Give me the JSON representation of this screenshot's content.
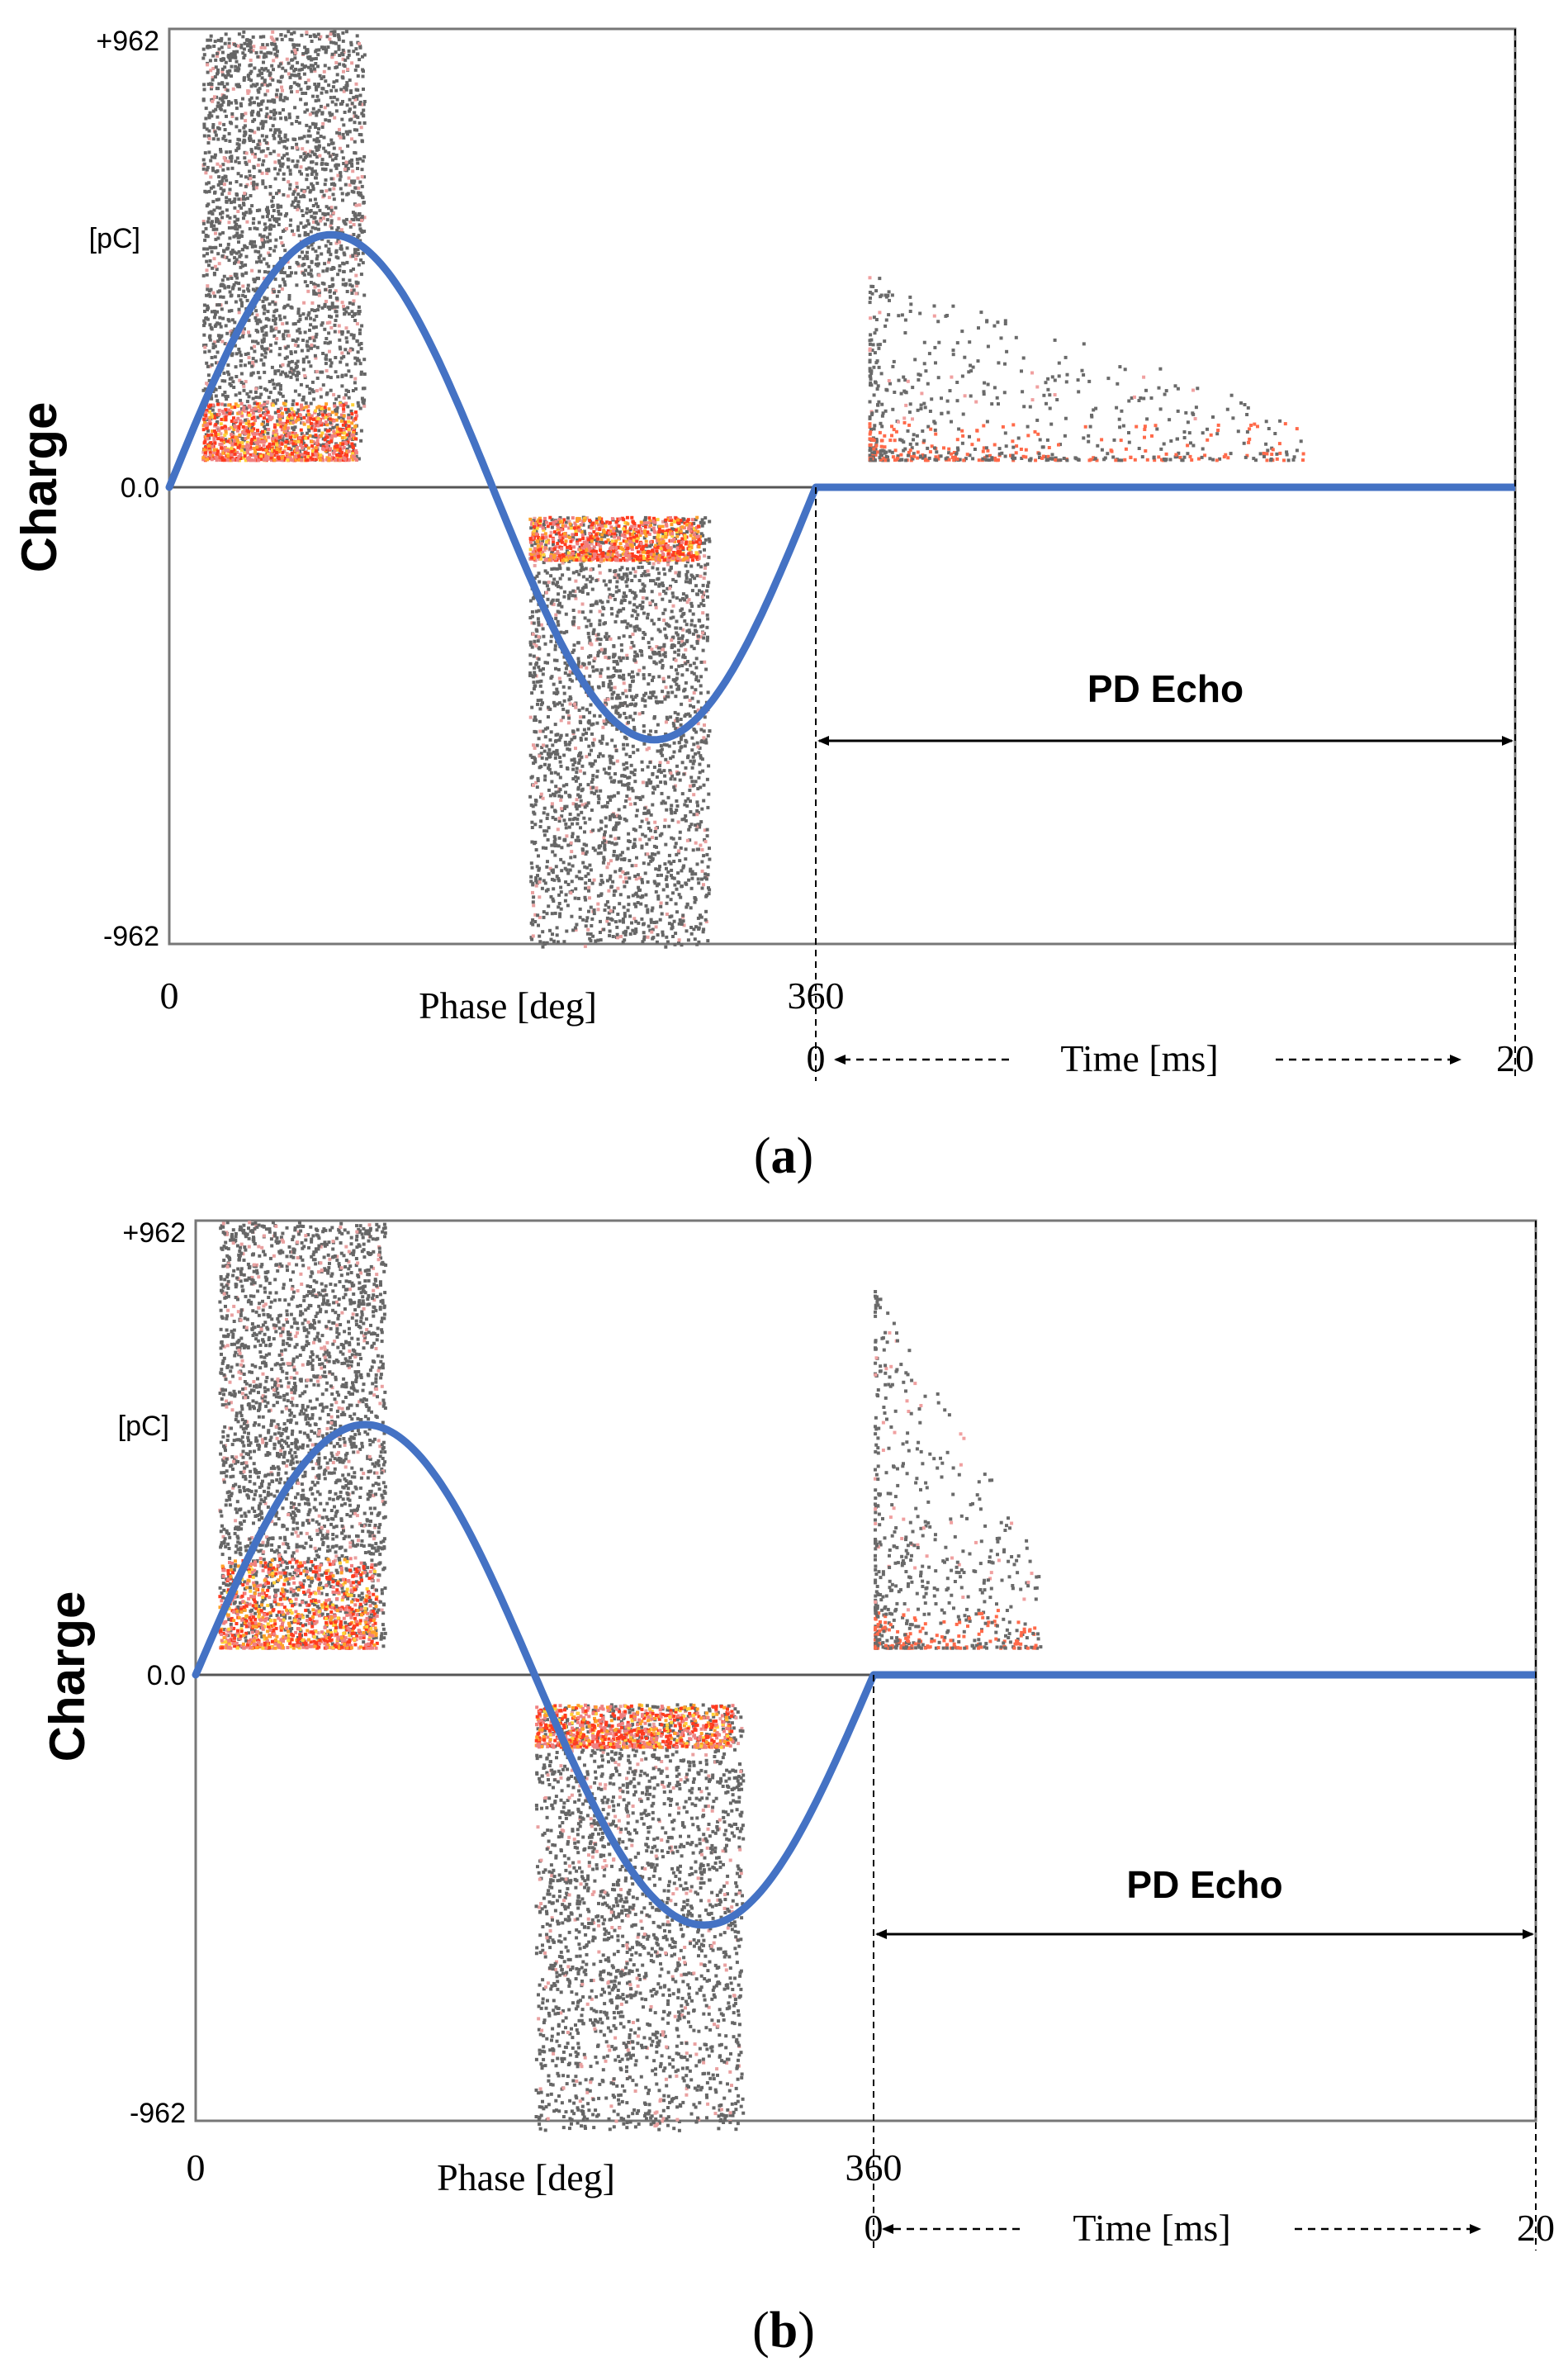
{
  "figure": {
    "panels": [
      {
        "caption_label": "a"
      },
      {
        "caption_label": "b"
      }
    ]
  },
  "chart_data": [
    {
      "type": "scatter",
      "panel": "a",
      "title": "",
      "ylabel": "Charge",
      "yunit": "[pC]",
      "ylim": [
        -962,
        962
      ],
      "yticks": [
        "+962",
        "0.0",
        "-962"
      ],
      "x_phase": {
        "label": "Phase [deg]",
        "range": [
          0,
          360
        ],
        "ticks": [
          "0",
          "360"
        ]
      },
      "x_time": {
        "label": "Time [ms]",
        "range": [
          0,
          20
        ],
        "ticks": [
          "0",
          "20"
        ]
      },
      "annotation": "PD Echo",
      "series": [
        {
          "name": "reference sine",
          "type": "line",
          "color": "#4472c4",
          "phase_deg": [
            0,
            90,
            180,
            270,
            360
          ],
          "charge_pC": [
            0,
            530,
            0,
            -530,
            0
          ]
        },
        {
          "name": "echo baseline",
          "type": "line",
          "color": "#4472c4",
          "time_ms": [
            0,
            20
          ],
          "charge_pC": [
            0,
            0
          ]
        },
        {
          "name": "positive PD cluster",
          "type": "scatter",
          "phase_range": [
            18,
            108
          ],
          "charge_range": [
            60,
            962
          ],
          "dense_band": [
            60,
            180
          ]
        },
        {
          "name": "negative PD cluster",
          "type": "scatter",
          "phase_range": [
            200,
            300
          ],
          "charge_range": [
            -962,
            -60
          ],
          "dense_band": [
            -150,
            -60
          ]
        },
        {
          "name": "PD echo pulses",
          "type": "scatter",
          "time_range_ms": [
            1.5,
            14
          ],
          "charge_range": [
            60,
            450
          ]
        }
      ]
    },
    {
      "type": "scatter",
      "panel": "b",
      "title": "",
      "ylabel": "Charge",
      "yunit": "[pC]",
      "ylim": [
        -962,
        962
      ],
      "yticks": [
        "+962",
        "0.0",
        "-962"
      ],
      "x_phase": {
        "label": "Phase [deg]",
        "range": [
          0,
          360
        ],
        "ticks": [
          "0",
          "360"
        ]
      },
      "x_time": {
        "label": "Time [ms]",
        "range": [
          0,
          20
        ],
        "ticks": [
          "0",
          "20"
        ]
      },
      "annotation": "PD Echo",
      "series": [
        {
          "name": "reference sine",
          "type": "line",
          "color": "#4472c4",
          "phase_deg": [
            0,
            90,
            180,
            270,
            360
          ],
          "charge_pC": [
            0,
            530,
            0,
            -530,
            0
          ]
        },
        {
          "name": "echo baseline",
          "type": "line",
          "color": "#4472c4",
          "time_ms": [
            0,
            20
          ],
          "charge_pC": [
            0,
            0
          ]
        },
        {
          "name": "positive PD cluster",
          "type": "scatter",
          "phase_range": [
            12,
            100
          ],
          "charge_range": [
            60,
            962
          ],
          "dense_band": [
            60,
            250
          ]
        },
        {
          "name": "negative PD cluster",
          "type": "scatter",
          "phase_range": [
            180,
            290
          ],
          "charge_range": [
            -962,
            -60
          ],
          "dense_band": [
            -150,
            -60
          ]
        },
        {
          "name": "PD echo pulses",
          "type": "scatter",
          "time_range_ms": [
            0,
            5
          ],
          "charge_range": [
            60,
            820
          ]
        }
      ]
    }
  ]
}
